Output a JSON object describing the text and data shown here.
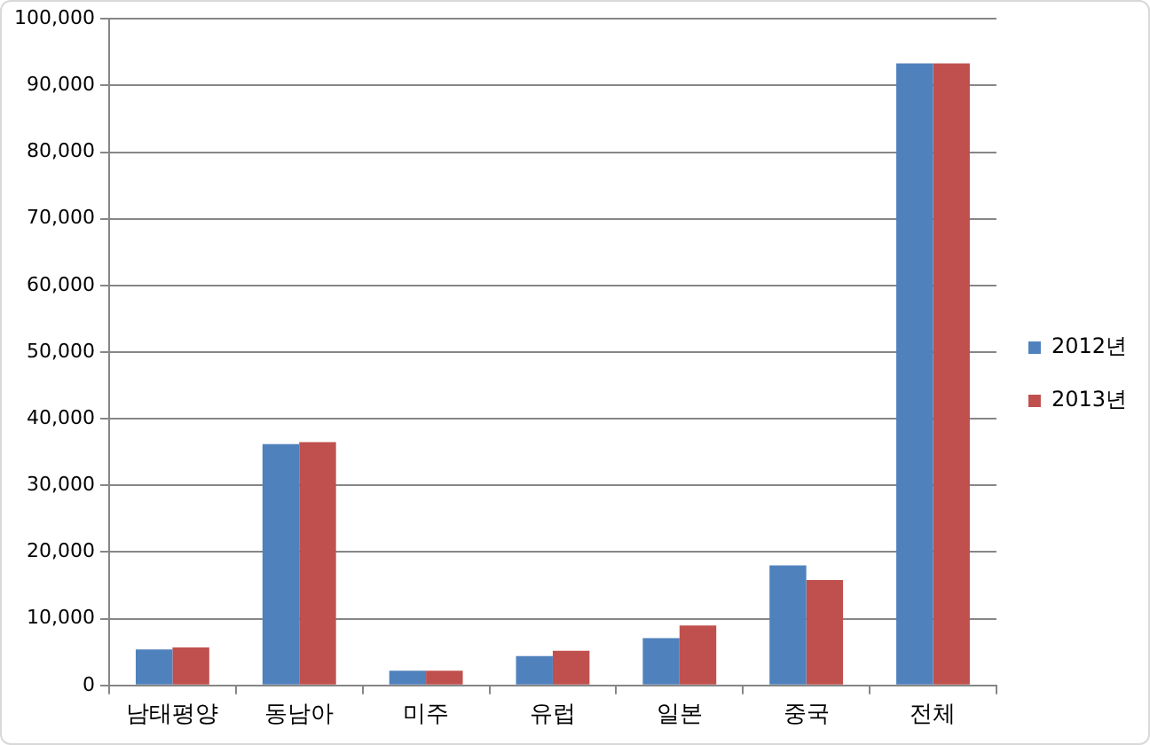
{
  "chart_data": {
    "type": "bar",
    "categories": [
      "남태평양",
      "동남아",
      "미주",
      "유럽",
      "일본",
      "중국",
      "전체"
    ],
    "series": [
      {
        "name": "2012년",
        "color": "#4f81bd",
        "values": [
          5400,
          36200,
          2200,
          4400,
          7100,
          18000,
          93300
        ]
      },
      {
        "name": "2013년",
        "color": "#c0504d",
        "values": [
          5700,
          36500,
          2200,
          5200,
          9000,
          15800,
          93300
        ]
      }
    ],
    "ylim": [
      0,
      100000
    ],
    "yticks": [
      {
        "value": 0,
        "label": "0"
      },
      {
        "value": 10000,
        "label": "10,000"
      },
      {
        "value": 20000,
        "label": "20,000"
      },
      {
        "value": 30000,
        "label": "30,000"
      },
      {
        "value": 40000,
        "label": "40,000"
      },
      {
        "value": 50000,
        "label": "50,000"
      },
      {
        "value": 60000,
        "label": "60,000"
      },
      {
        "value": 70000,
        "label": "70,000"
      },
      {
        "value": 80000,
        "label": "80,000"
      },
      {
        "value": 90000,
        "label": "90,000"
      },
      {
        "value": 100000,
        "label": "100,000"
      }
    ],
    "grid": "y",
    "legend": "right"
  }
}
